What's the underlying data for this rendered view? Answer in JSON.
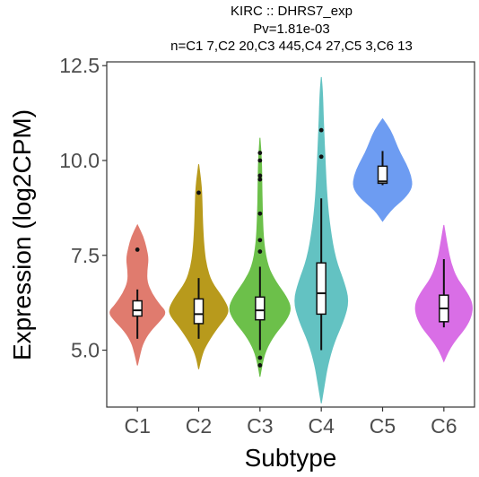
{
  "chart_data": {
    "type": "violin",
    "title_lines": [
      "KIRC :: DHRS7_exp",
      "Pv=1.81e-03",
      "n=C1 7,C2 20,C3 445,C4 27,C5 3,C6 13"
    ],
    "xlabel": "Subtype",
    "ylabel": "Expression (log2CPM)",
    "ylim": [
      3.5,
      12.6
    ],
    "yticks": [
      5.0,
      7.5,
      10.0,
      12.5
    ],
    "ytick_labels": [
      "5.0",
      "7.5",
      "10.0",
      "12.5"
    ],
    "grid": false,
    "categories": [
      "C1",
      "C2",
      "C3",
      "C4",
      "C5",
      "C6"
    ],
    "groups": [
      {
        "name": "C1",
        "color": "#e07b6e",
        "density": [
          [
            4.6,
            0.0
          ],
          [
            4.9,
            0.08
          ],
          [
            5.2,
            0.18
          ],
          [
            5.5,
            0.4
          ],
          [
            5.8,
            0.75
          ],
          [
            6.0,
            0.92
          ],
          [
            6.2,
            0.7
          ],
          [
            6.5,
            0.45
          ],
          [
            6.8,
            0.3
          ],
          [
            7.1,
            0.3
          ],
          [
            7.4,
            0.35
          ],
          [
            7.7,
            0.28
          ],
          [
            8.0,
            0.18
          ],
          [
            8.3,
            0.0
          ]
        ],
        "whisker": [
          5.3,
          6.6
        ],
        "box": [
          5.9,
          6.3
        ],
        "median": 6.05,
        "outliers": [
          7.65
        ]
      },
      {
        "name": "C2",
        "color": "#b89a1c",
        "density": [
          [
            4.5,
            0.0
          ],
          [
            4.9,
            0.1
          ],
          [
            5.2,
            0.28
          ],
          [
            5.6,
            0.6
          ],
          [
            5.9,
            0.9
          ],
          [
            6.1,
            0.95
          ],
          [
            6.4,
            0.75
          ],
          [
            6.8,
            0.4
          ],
          [
            7.2,
            0.25
          ],
          [
            7.6,
            0.18
          ],
          [
            8.2,
            0.13
          ],
          [
            8.8,
            0.11
          ],
          [
            9.3,
            0.09
          ],
          [
            9.9,
            0.0
          ]
        ],
        "whisker": [
          5.3,
          6.9
        ],
        "box": [
          5.7,
          6.35
        ],
        "median": 5.95,
        "outliers": [
          9.15
        ]
      },
      {
        "name": "C3",
        "color": "#6cc04a",
        "density": [
          [
            4.3,
            0.0
          ],
          [
            4.6,
            0.06
          ],
          [
            5.0,
            0.18
          ],
          [
            5.4,
            0.45
          ],
          [
            5.8,
            0.85
          ],
          [
            6.1,
            1.0
          ],
          [
            6.4,
            0.85
          ],
          [
            6.8,
            0.5
          ],
          [
            7.2,
            0.25
          ],
          [
            7.8,
            0.12
          ],
          [
            8.5,
            0.08
          ],
          [
            9.3,
            0.06
          ],
          [
            10.0,
            0.05
          ],
          [
            10.6,
            0.0
          ]
        ],
        "whisker": [
          5.0,
          7.2
        ],
        "box": [
          5.8,
          6.4
        ],
        "median": 6.05,
        "outliers": [
          4.6,
          4.8,
          7.6,
          7.9,
          8.6,
          9.5,
          9.6,
          10.0,
          10.2
        ]
      },
      {
        "name": "C4",
        "color": "#63c2c2",
        "density": [
          [
            3.6,
            0.0
          ],
          [
            4.1,
            0.1
          ],
          [
            4.6,
            0.2
          ],
          [
            5.2,
            0.4
          ],
          [
            5.8,
            0.72
          ],
          [
            6.3,
            0.88
          ],
          [
            6.8,
            0.72
          ],
          [
            7.4,
            0.45
          ],
          [
            8.2,
            0.28
          ],
          [
            9.0,
            0.18
          ],
          [
            10.0,
            0.12
          ],
          [
            11.0,
            0.07
          ],
          [
            11.8,
            0.04
          ],
          [
            12.2,
            0.0
          ]
        ],
        "whisker": [
          5.0,
          9.0
        ],
        "box": [
          5.95,
          7.3
        ],
        "median": 6.5,
        "outliers": [
          10.1,
          10.8
        ]
      },
      {
        "name": "C5",
        "color": "#6d9cf2",
        "density": [
          [
            8.4,
            0.0
          ],
          [
            8.7,
            0.25
          ],
          [
            9.0,
            0.7
          ],
          [
            9.3,
            0.95
          ],
          [
            9.6,
            0.9
          ],
          [
            9.9,
            0.75
          ],
          [
            10.2,
            0.55
          ],
          [
            10.5,
            0.4
          ],
          [
            10.8,
            0.25
          ],
          [
            11.1,
            0.0
          ]
        ],
        "whisker": [
          9.35,
          10.25
        ],
        "box": [
          9.4,
          9.85
        ],
        "median": 9.45,
        "outliers": []
      },
      {
        "name": "C6",
        "color": "#d96ee6",
        "density": [
          [
            4.7,
            0.0
          ],
          [
            5.0,
            0.15
          ],
          [
            5.3,
            0.4
          ],
          [
            5.6,
            0.7
          ],
          [
            5.9,
            0.88
          ],
          [
            6.2,
            0.92
          ],
          [
            6.5,
            0.75
          ],
          [
            6.9,
            0.4
          ],
          [
            7.3,
            0.22
          ],
          [
            7.7,
            0.12
          ],
          [
            8.3,
            0.0
          ]
        ],
        "whisker": [
          5.6,
          7.4
        ],
        "box": [
          5.75,
          6.45
        ],
        "median": 6.1,
        "outliers": []
      }
    ]
  }
}
